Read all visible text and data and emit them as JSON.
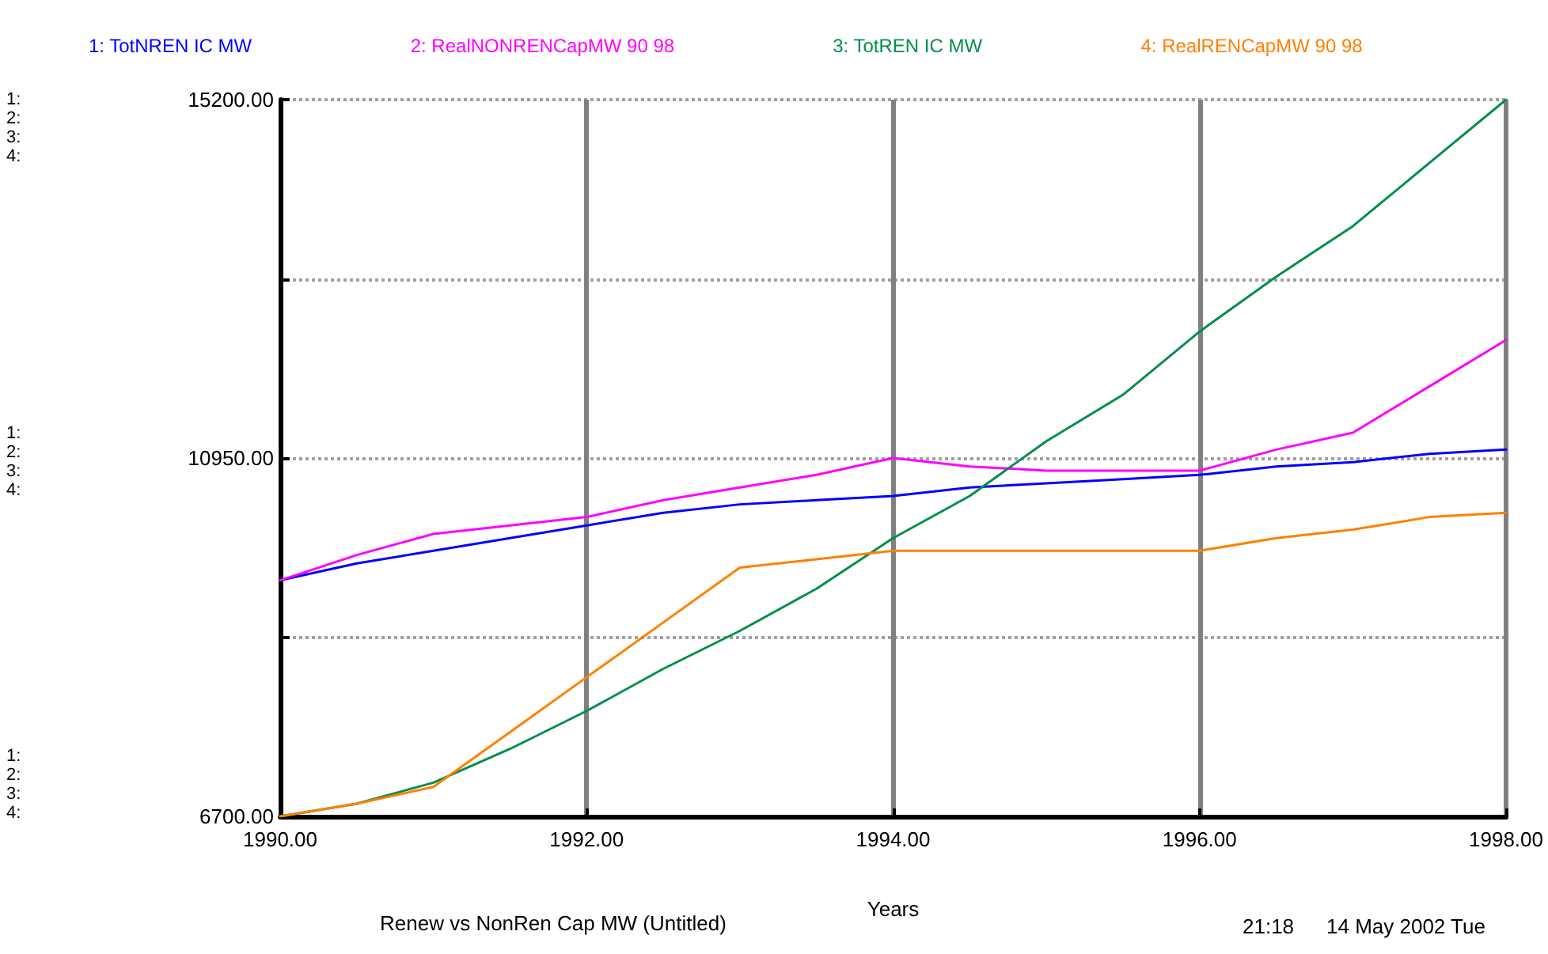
{
  "chart_data": {
    "type": "line",
    "title": "Renew vs NonRen Cap MW (Untitled)",
    "xlabel": "Years",
    "x": [
      1990,
      1990.5,
      1991,
      1991.5,
      1992,
      1992.5,
      1993,
      1993.5,
      1994,
      1994.5,
      1995,
      1995.5,
      1996,
      1996.5,
      1997,
      1997.5,
      1998
    ],
    "series": [
      {
        "name": "1: TotNREN IC MW",
        "color": "#0000ff",
        "values": [
          9500,
          9700,
          9850,
          10000,
          10150,
          10300,
          10400,
          10450,
          10500,
          10600,
          10650,
          10700,
          10750,
          10850,
          10900,
          11000,
          11050
        ]
      },
      {
        "name": "2: RealNONRENCapMW 90 98",
        "color": "#ff00ff",
        "values": [
          9500,
          9800,
          10050,
          10150,
          10250,
          10450,
          10600,
          10750,
          10950,
          10850,
          10800,
          10800,
          10800,
          11050,
          11250,
          11800,
          12350
        ]
      },
      {
        "name": "3: TotREN IC MW",
        "color": "#008f4c",
        "values": [
          6700,
          6850,
          7100,
          7500,
          7950,
          8450,
          8900,
          9400,
          10000,
          10500,
          11150,
          11700,
          12450,
          13100,
          13700,
          14450,
          15200
        ]
      },
      {
        "name": "4: RealRENCapMW 90 98",
        "color": "#ff8000",
        "values": [
          6700,
          6850,
          7050,
          7700,
          8350,
          9000,
          9650,
          9750,
          9850,
          9850,
          9850,
          9850,
          9850,
          10000,
          10100,
          10250,
          10300
        ]
      }
    ],
    "xlim": [
      1990,
      1998
    ],
    "xticks": [
      {
        "value": 1990,
        "label": "1990.00"
      },
      {
        "value": 1992,
        "label": "1992.00"
      },
      {
        "value": 1994,
        "label": "1994.00"
      },
      {
        "value": 1996,
        "label": "1996.00"
      },
      {
        "value": 1998,
        "label": "1998.00"
      }
    ],
    "ylim": [
      6700,
      15200
    ],
    "yticks": [
      {
        "value": 6700,
        "label": "6700.00"
      },
      {
        "value": 8825,
        "label": null
      },
      {
        "value": 10950,
        "label": "10950.00"
      },
      {
        "value": 13075,
        "label": null
      },
      {
        "value": 15200,
        "label": "15200.00"
      }
    ],
    "grid": true,
    "legend": "top",
    "marker": "none",
    "line_style": "solid",
    "annotations": [
      "1:\n2:\n3:\n4:",
      "1:\n2:\n3:\n4:",
      "1:\n2:\n3:\n4:",
      "21:18",
      "14 May 2002 Tue"
    ]
  }
}
